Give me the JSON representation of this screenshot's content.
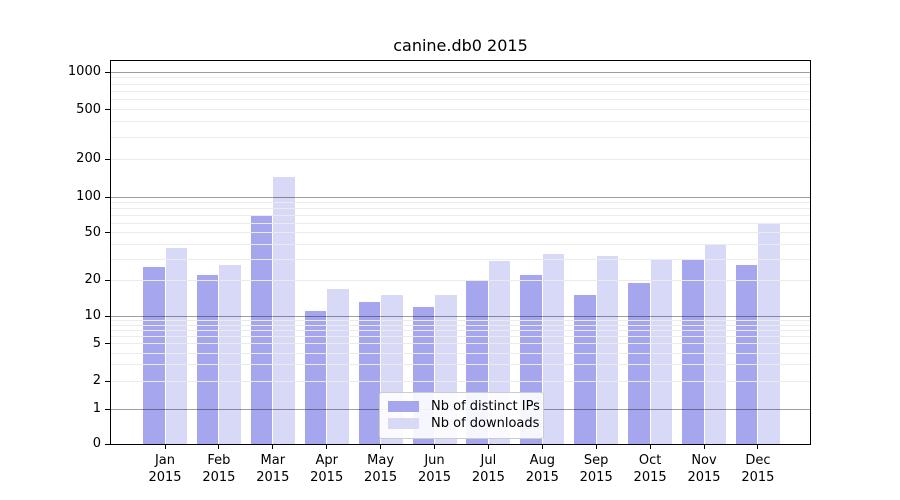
{
  "chart_data": {
    "type": "bar",
    "title": "canine.db0 2015",
    "yscale": "symlog",
    "ylim": [
      0,
      1230
    ],
    "grid": true,
    "legend_position": "lower center",
    "yticks": [
      0,
      1,
      2,
      5,
      10,
      20,
      50,
      100,
      200,
      500,
      1000
    ],
    "categories": [
      "Jan",
      "Feb",
      "Mar",
      "Apr",
      "May",
      "Jun",
      "Jul",
      "Aug",
      "Sep",
      "Oct",
      "Nov",
      "Dec"
    ],
    "xlabel_year": "2015",
    "series": [
      {
        "name": "Nb of distinct IPs",
        "color": "#a6a6ee",
        "values": [
          26,
          22,
          70,
          11,
          13,
          12,
          20,
          22,
          15,
          19,
          30,
          27
        ]
      },
      {
        "name": "Nb of downloads",
        "color": "#d8d8f7",
        "values": [
          37,
          27,
          145,
          17,
          15,
          15,
          29,
          33,
          32,
          30,
          40,
          61
        ]
      }
    ],
    "colors": {
      "axis": "#000000",
      "major_grid": "#a6a6a6",
      "minor_grid": "#ebebeb",
      "legend_border": "#cccccc"
    }
  }
}
